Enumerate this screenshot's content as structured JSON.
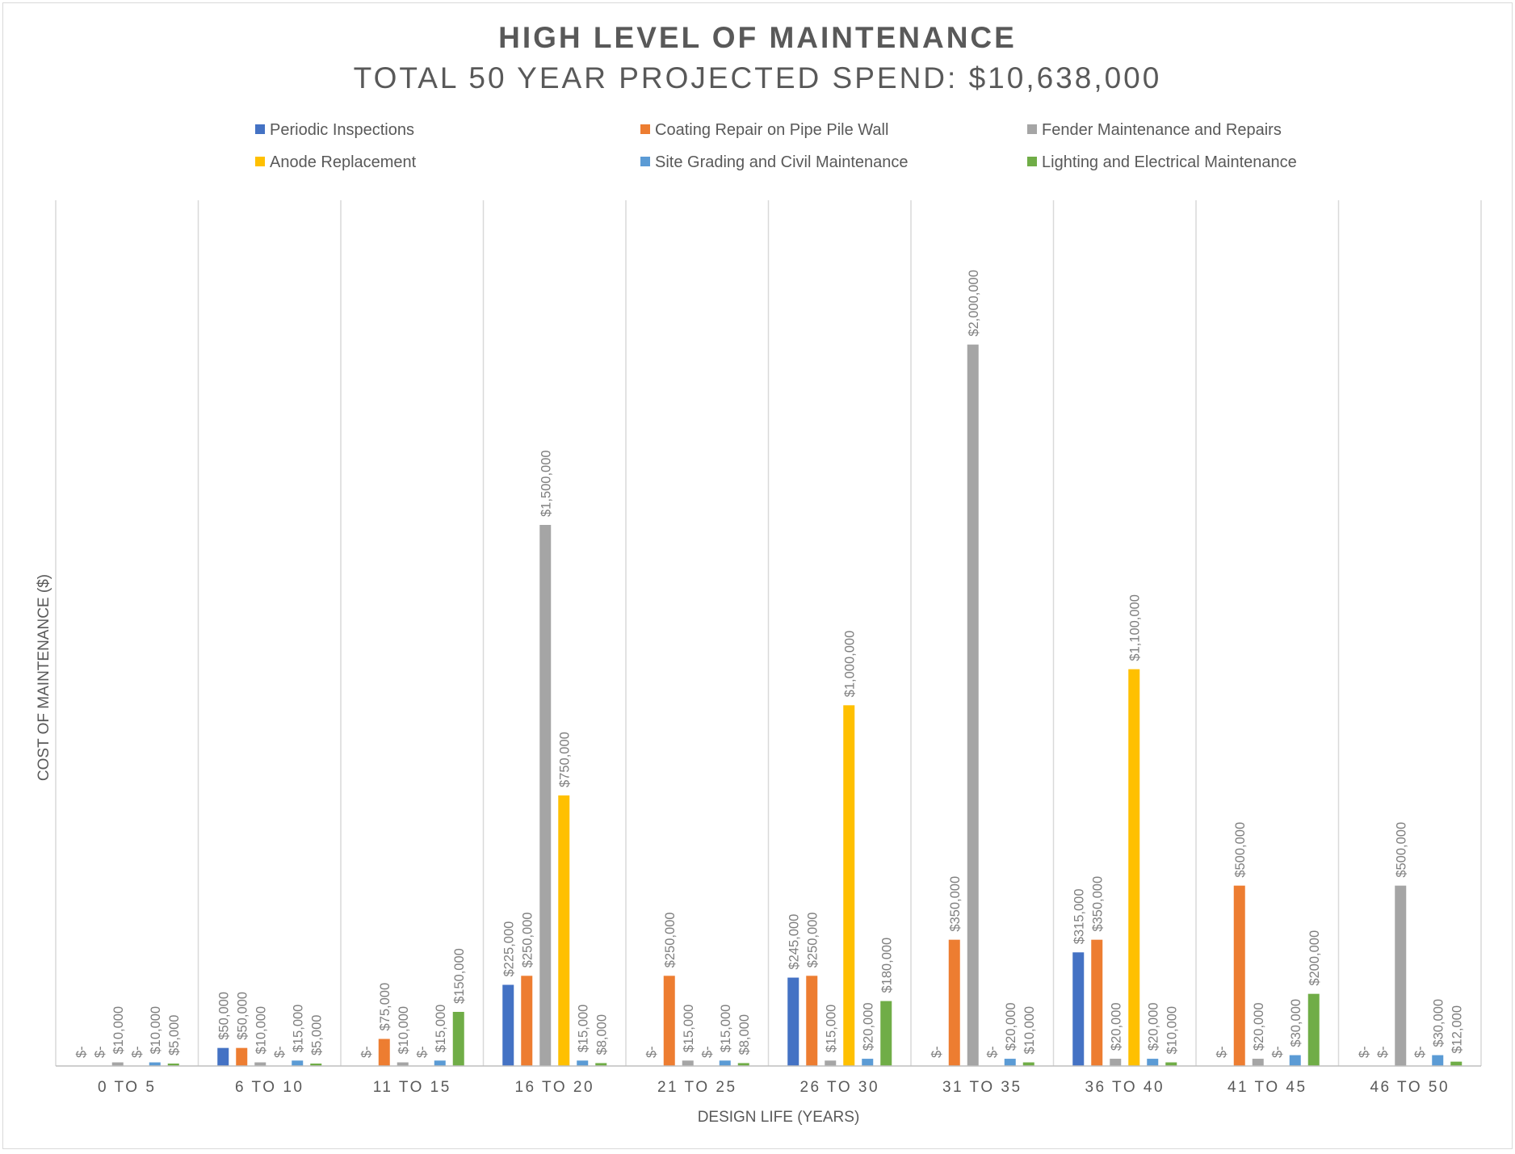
{
  "chart_data": {
    "type": "bar",
    "title": "HIGH LEVEL OF MAINTENANCE",
    "subtitle": "TOTAL 50 YEAR PROJECTED SPEND: $10,638,000",
    "xlabel": "DESIGN LIFE (YEARS)",
    "ylabel": "COST OF MAINTENANCE ($)",
    "ylim": [
      0,
      2400000
    ],
    "grid": false,
    "legend_position": "top",
    "categories": [
      "0 TO 5",
      "6 TO 10",
      "11 TO 15",
      "16 TO 20",
      "21 TO 25",
      "26 TO 30",
      "31 TO 35",
      "36 TO 40",
      "41 TO 45",
      "46 TO 50"
    ],
    "series": [
      {
        "name": "Periodic Inspections",
        "color": "#4472C4",
        "values": [
          0,
          50000,
          0,
          225000,
          0,
          245000,
          0,
          315000,
          0,
          0
        ],
        "labels": [
          "$-",
          "$50,000",
          "$-",
          "$225,000",
          "$-",
          "$245,000",
          "$-",
          "$315,000",
          "$-",
          "$-"
        ]
      },
      {
        "name": "Coating Repair on Pipe Pile Wall",
        "color": "#ED7D31",
        "values": [
          0,
          50000,
          75000,
          250000,
          250000,
          250000,
          350000,
          350000,
          500000,
          0
        ],
        "labels": [
          "$-",
          "$50,000",
          "$75,000",
          "$250,000",
          "$250,000",
          "$250,000",
          "$350,000",
          "$350,000",
          "$500,000",
          "$-"
        ]
      },
      {
        "name": "Fender Maintenance and Repairs",
        "color": "#A5A5A5",
        "values": [
          10000,
          10000,
          10000,
          1500000,
          15000,
          15000,
          2000000,
          20000,
          20000,
          500000
        ],
        "labels": [
          "$10,000",
          "$10,000",
          "$10,000",
          "$1,500,000",
          "$15,000",
          "$15,000",
          "$2,000,000",
          "$20,000",
          "$20,000",
          "$500,000"
        ]
      },
      {
        "name": "Anode Replacement",
        "color": "#FFC000",
        "values": [
          0,
          0,
          0,
          750000,
          0,
          1000000,
          0,
          1100000,
          0,
          0
        ],
        "labels": [
          "$-",
          "$-",
          "$-",
          "$750,000",
          "$-",
          "$1,000,000",
          "$-",
          "$1,100,000",
          "$-",
          "$-"
        ]
      },
      {
        "name": "Site Grading and Civil Maintenance",
        "color": "#5B9BD5",
        "values": [
          10000,
          15000,
          15000,
          15000,
          15000,
          20000,
          20000,
          20000,
          30000,
          30000
        ],
        "labels": [
          "$10,000",
          "$15,000",
          "$15,000",
          "$15,000",
          "$15,000",
          "$20,000",
          "$20,000",
          "$20,000",
          "$30,000",
          "$30,000"
        ]
      },
      {
        "name": "Lighting and Electrical Maintenance",
        "color": "#70AD47",
        "values": [
          5000,
          5000,
          150000,
          8000,
          8000,
          180000,
          10000,
          10000,
          200000,
          12000
        ],
        "labels": [
          "$5,000",
          "$5,000",
          "$150,000",
          "$8,000",
          "$8,000",
          "$180,000",
          "$10,000",
          "$10,000",
          "$200,000",
          "$12,000"
        ]
      }
    ]
  }
}
